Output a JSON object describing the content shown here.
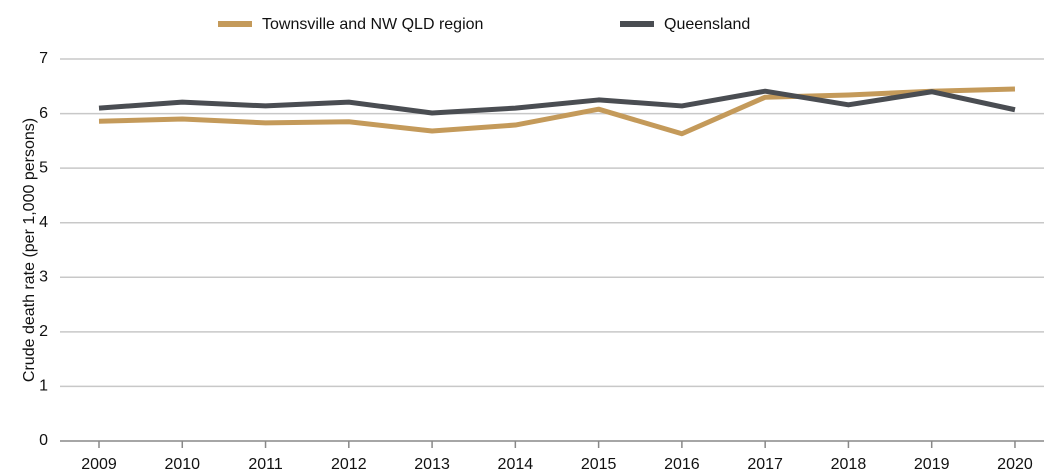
{
  "chart_data": {
    "type": "line",
    "y_label": "Crude death rate (per 1,000 persons)",
    "categories": [
      "2009",
      "2010",
      "2011",
      "2012",
      "2013",
      "2014",
      "2015",
      "2016",
      "2017",
      "2018",
      "2019",
      "2020"
    ],
    "series": [
      {
        "name": "Townsville and NW QLD region",
        "color": "#c49a5a",
        "values": [
          5.86,
          5.9,
          5.83,
          5.85,
          5.68,
          5.79,
          6.08,
          5.63,
          6.3,
          6.34,
          6.41,
          6.45
        ]
      },
      {
        "name": "Queensland",
        "color": "#4a4d52",
        "values": [
          6.1,
          6.21,
          6.14,
          6.21,
          6.01,
          6.1,
          6.25,
          6.14,
          6.41,
          6.16,
          6.4,
          6.07
        ]
      }
    ],
    "ylim": [
      0,
      7
    ],
    "yticks": [
      0,
      1,
      2,
      3,
      4,
      5,
      6,
      7
    ],
    "grid": true,
    "legend": "top"
  }
}
